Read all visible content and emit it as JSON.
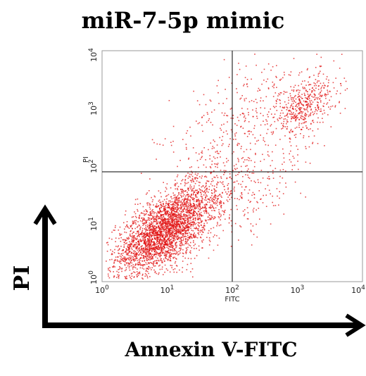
{
  "chart_data": {
    "type": "scatter",
    "title": "miR-7-5p mimic",
    "xlabel": "Annexin V-FITC",
    "ylabel": "PI",
    "inner_xlabel": "FITC",
    "inner_ylabel": "PI",
    "xscale": "log",
    "yscale": "log",
    "xlim": [
      1,
      10000
    ],
    "ylim": [
      1,
      10000
    ],
    "x_ticks": [
      {
        "value": 1,
        "base": "10",
        "exp": "0"
      },
      {
        "value": 10,
        "base": "10",
        "exp": "1"
      },
      {
        "value": 100,
        "base": "10",
        "exp": "2"
      },
      {
        "value": 1000,
        "base": "10",
        "exp": "3"
      },
      {
        "value": 10000,
        "base": "10",
        "exp": "4"
      }
    ],
    "y_ticks": [
      {
        "value": 1,
        "base": "10",
        "exp": "0"
      },
      {
        "value": 10,
        "base": "10",
        "exp": "1"
      },
      {
        "value": 100,
        "base": "10",
        "exp": "2"
      },
      {
        "value": 1000,
        "base": "10",
        "exp": "3"
      },
      {
        "value": 10000,
        "base": "10",
        "exp": "4"
      }
    ],
    "quadrant_gates": {
      "x": 100,
      "y": 80
    },
    "point_color": "#e01010",
    "clusters": [
      {
        "center": [
          8,
          7
        ],
        "spread": [
          0.35,
          0.3
        ],
        "count": 2600
      },
      {
        "center": [
          25,
          20
        ],
        "spread": [
          0.35,
          0.3
        ],
        "count": 500
      },
      {
        "center": [
          1200,
          1100
        ],
        "spread": [
          0.22,
          0.22
        ],
        "count": 420
      },
      {
        "center": [
          200,
          600
        ],
        "spread": [
          0.7,
          0.55
        ],
        "count": 450
      },
      {
        "center": [
          120,
          25
        ],
        "spread": [
          0.55,
          0.35
        ],
        "count": 250
      }
    ]
  }
}
